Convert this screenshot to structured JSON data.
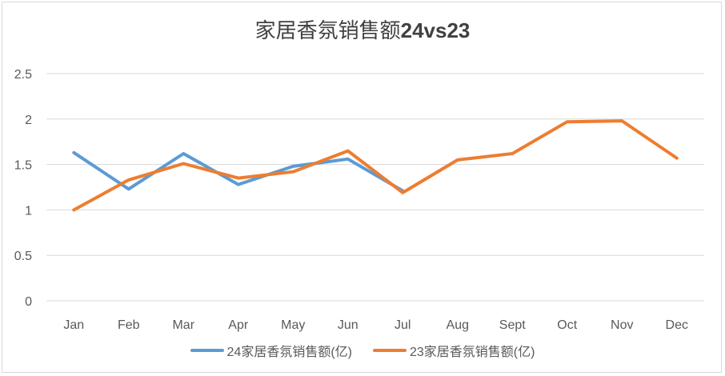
{
  "chart_data": {
    "type": "line",
    "title": "家居香氛销售额24vs23",
    "title_parts": {
      "zh": "家居香氛销售额",
      "en": "24vs23"
    },
    "xlabel": "",
    "ylabel": "",
    "categories": [
      "Jan",
      "Feb",
      "Mar",
      "Apr",
      "May",
      "Jun",
      "Jul",
      "Aug",
      "Sept",
      "Oct",
      "Nov",
      "Dec"
    ],
    "ylim": [
      0,
      2.5
    ],
    "yticks": [
      "0",
      "0.5",
      "1",
      "1.5",
      "2",
      "2.5"
    ],
    "grid": true,
    "legend_position": "bottom",
    "series": [
      {
        "name": "24家居香氛销售额(亿)",
        "color": "#5b9bd5",
        "values": [
          1.63,
          1.23,
          1.62,
          1.28,
          1.48,
          1.56,
          1.21,
          null,
          null,
          null,
          null,
          null
        ]
      },
      {
        "name": "23家居香氛销售额(亿)",
        "color": "#ed7d31",
        "values": [
          1.0,
          1.33,
          1.51,
          1.35,
          1.42,
          1.65,
          1.19,
          1.55,
          1.62,
          1.97,
          1.98,
          1.57
        ]
      }
    ]
  }
}
